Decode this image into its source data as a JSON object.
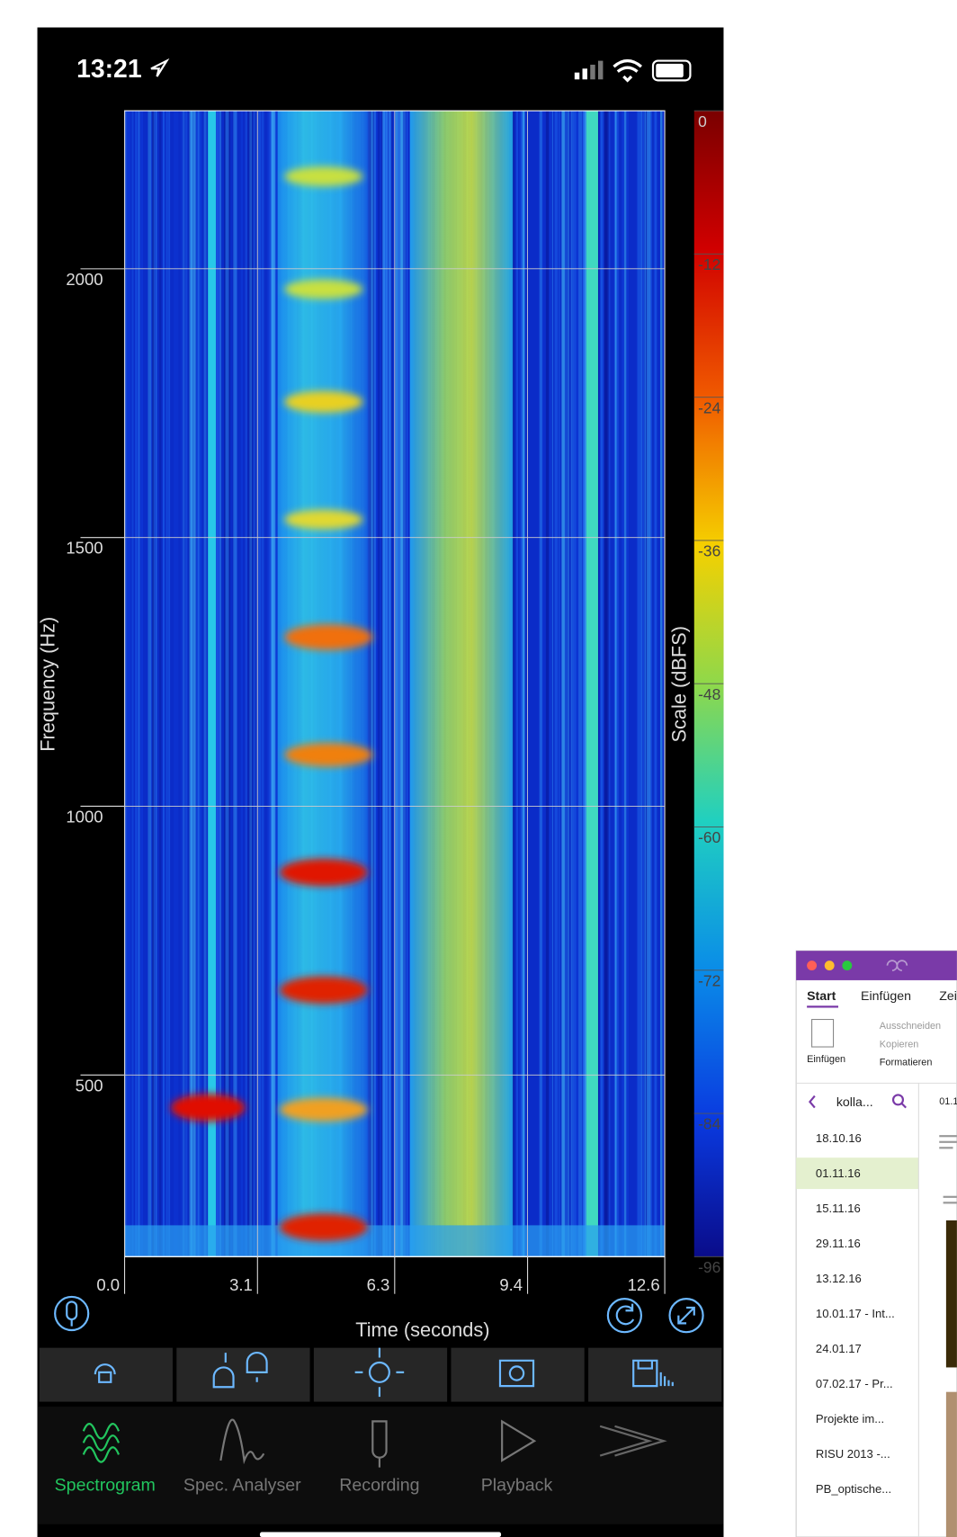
{
  "status_bar": {
    "time": "13:21"
  },
  "chart_data": {
    "type": "spectrogram",
    "xlabel": "Time (seconds)",
    "ylabel": "Frequency (Hz)",
    "xlim": [
      0,
      12.6
    ],
    "xticks": [
      {
        "value": 0,
        "label": "0.0"
      },
      3.1,
      6.3,
      9.4,
      12.6
    ],
    "ylim": [
      162,
      2294
    ],
    "yticks": [
      500,
      1000,
      1500,
      2000
    ],
    "grid": true,
    "colorbar": {
      "label": "Scale (dBFS)",
      "lim": [
        -96,
        0
      ],
      "ticks": [
        0,
        -12,
        -24,
        -36,
        -48,
        -60,
        -72,
        -84,
        -96
      ]
    }
  },
  "tab_bar": {
    "tabs": [
      "Spectrogram",
      "Spec. Analyser",
      "Recording",
      "Playback"
    ]
  },
  "onenote": {
    "ribbon_tabs": [
      "Start",
      "Einfügen",
      "Zei"
    ],
    "clipboard": {
      "paste": "Einfügen",
      "cut": "Ausschneiden",
      "copy": "Kopieren",
      "format": "Formatieren"
    },
    "notebook": "kolla...",
    "pages": [
      "18.10.16",
      "01.11.16",
      "15.11.16",
      "29.11.16",
      "13.12.16",
      "10.01.17 - Int...",
      "24.01.17",
      "07.02.17 - Pr...",
      "Projekte im...",
      "RISU 2013 -...",
      "PB_optische..."
    ],
    "page_title": "01.1"
  }
}
